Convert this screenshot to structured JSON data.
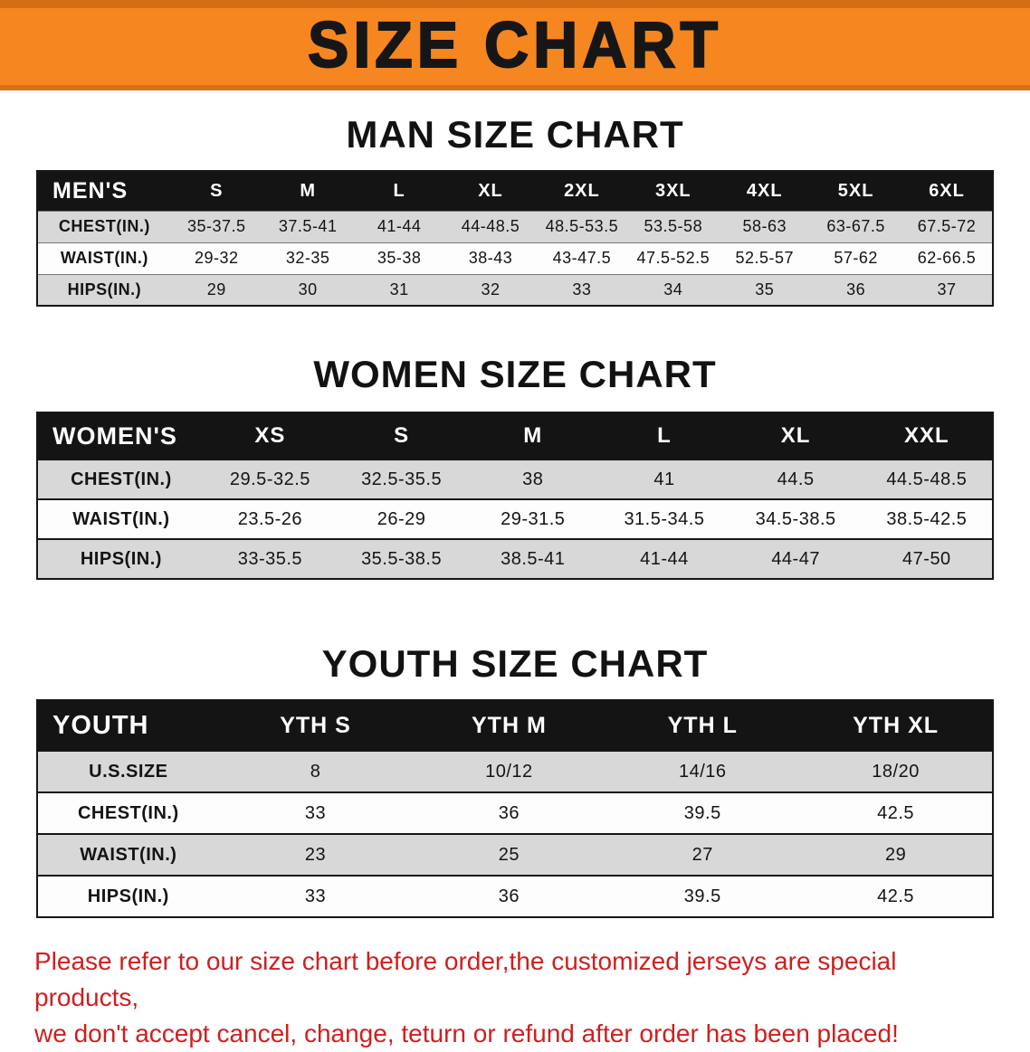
{
  "banner": {
    "title": "SIZE CHART"
  },
  "sections": [
    {
      "id": "men",
      "heading": "MAN SIZE CHART",
      "table": {
        "header": [
          "MEN'S",
          "S",
          "M",
          "L",
          "XL",
          "2XL",
          "3XL",
          "4XL",
          "5XL",
          "6XL"
        ],
        "rows": [
          [
            "CHEST(IN.)",
            "35-37.5",
            "37.5-41",
            "41-44",
            "44-48.5",
            "48.5-53.5",
            "53.5-58",
            "58-63",
            "63-67.5",
            "67.5-72"
          ],
          [
            "WAIST(IN.)",
            "29-32",
            "32-35",
            "35-38",
            "38-43",
            "43-47.5",
            "47.5-52.5",
            "52.5-57",
            "57-62",
            "62-66.5"
          ],
          [
            "HIPS(IN.)",
            "29",
            "30",
            "31",
            "32",
            "33",
            "34",
            "35",
            "36",
            "37"
          ]
        ]
      }
    },
    {
      "id": "women",
      "heading": "WOMEN SIZE CHART",
      "table": {
        "header": [
          "WOMEN'S",
          "XS",
          "S",
          "M",
          "L",
          "XL",
          "XXL"
        ],
        "rows": [
          [
            "CHEST(IN.)",
            "29.5-32.5",
            "32.5-35.5",
            "38",
            "41",
            "44.5",
            "44.5-48.5"
          ],
          [
            "WAIST(IN.)",
            "23.5-26",
            "26-29",
            "29-31.5",
            "31.5-34.5",
            "34.5-38.5",
            "38.5-42.5"
          ],
          [
            "HIPS(IN.)",
            "33-35.5",
            "35.5-38.5",
            "38.5-41",
            "41-44",
            "44-47",
            "47-50"
          ]
        ]
      }
    },
    {
      "id": "youth",
      "heading": "YOUTH SIZE CHART",
      "table": {
        "header": [
          "YOUTH",
          "YTH S",
          "YTH M",
          "YTH L",
          "YTH XL"
        ],
        "rows": [
          [
            "U.S.SIZE",
            "8",
            "10/12",
            "14/16",
            "18/20"
          ],
          [
            "CHEST(IN.)",
            "33",
            "36",
            "39.5",
            "42.5"
          ],
          [
            "WAIST(IN.)",
            "23",
            "25",
            "27",
            "29"
          ],
          [
            "HIPS(IN.)",
            "33",
            "36",
            "39.5",
            "42.5"
          ]
        ]
      }
    }
  ],
  "disclaimer": {
    "line1": "Please refer to our size chart before order,the customized jerseys are special products,",
    "line2": "we don't accept cancel, change, teturn or refund after order has been placed!"
  },
  "colors": {
    "banner_orange": "#f6861f",
    "header_black": "#141414",
    "stripe_gray": "#d8d8d8",
    "row_white": "#fdfdfd",
    "red": "#d01f1f"
  }
}
